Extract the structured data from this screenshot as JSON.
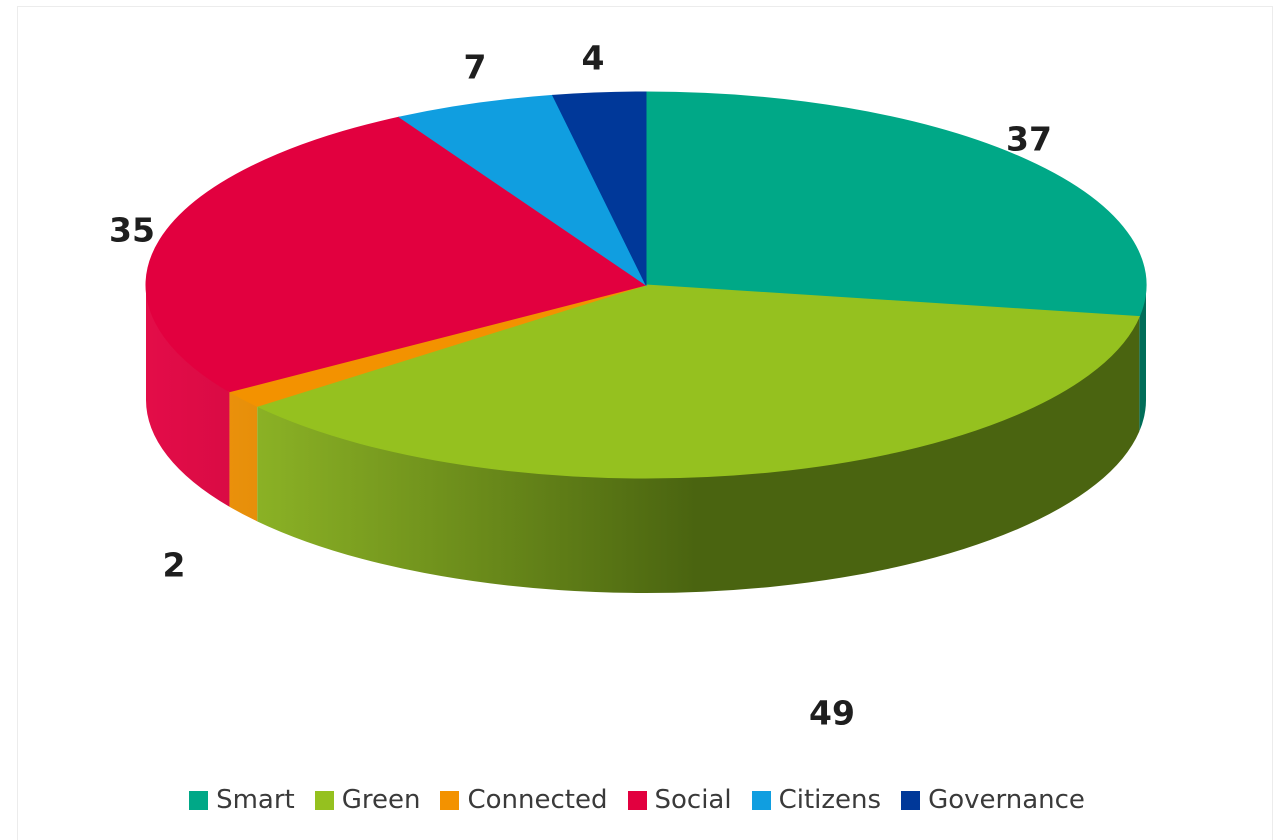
{
  "chart_data": {
    "type": "pie",
    "variant": "3d",
    "start_angle_deg": -90,
    "direction": "clockwise",
    "slices": [
      {
        "name": "Smart",
        "value": 37,
        "label": "37",
        "color": "#00a887",
        "side_color": "#006d58"
      },
      {
        "name": "Green",
        "value": 49,
        "label": "49",
        "color": "#95c11f",
        "side_color": "#4a6410"
      },
      {
        "name": "Connected",
        "value": 2,
        "label": "2",
        "color": "#f39200",
        "side_color": "#b06a00"
      },
      {
        "name": "Social",
        "value": 35,
        "label": "35",
        "color": "#e2003f",
        "side_color": "#a0002c"
      },
      {
        "name": "Citizens",
        "value": 7,
        "label": "7",
        "color": "#109ee0",
        "side_color": "#0b6fa0"
      },
      {
        "name": "Governance",
        "value": 4,
        "label": "4",
        "color": "#003899",
        "side_color": "#00246a"
      }
    ],
    "legend_position": "bottom"
  }
}
